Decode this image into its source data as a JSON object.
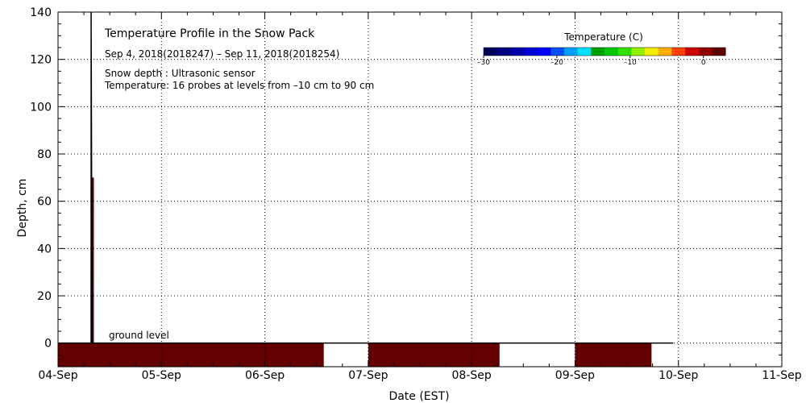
{
  "chart_data": {
    "type": "heatmap",
    "title": "Temperature Profile in the Snow Pack",
    "subtitle": "Sep  4, 2018(2018247) – Sep 11, 2018(2018254)",
    "notes": [
      "Snow depth : Ultrasonic sensor",
      "Temperature: 16 probes at levels from –10 cm to 90 cm"
    ],
    "xlabel": "Date (EST)",
    "ylabel": "Depth, cm",
    "x_ticks": [
      "04-Sep",
      "05-Sep",
      "06-Sep",
      "07-Sep",
      "08-Sep",
      "09-Sep",
      "10-Sep",
      "11-Sep"
    ],
    "x_range_days": [
      0,
      7
    ],
    "ylim": [
      -10,
      140
    ],
    "y_ticks": [
      0,
      20,
      40,
      60,
      80,
      100,
      120,
      140
    ],
    "grid": true,
    "ground_level_label": "ground level",
    "colorbar": {
      "title": "Temperature (C)",
      "ticks": [
        -30,
        -20,
        -10,
        0
      ],
      "range": [
        -30,
        3
      ],
      "colors": [
        "#00005a",
        "#000082",
        "#0000aa",
        "#0000d2",
        "#0000ff",
        "#0050ff",
        "#00a0ff",
        "#00e0ff",
        "#00a000",
        "#00c800",
        "#30e000",
        "#90f000",
        "#f0f000",
        "#ffb000",
        "#ff4000",
        "#d00000",
        "#900000",
        "#600000"
      ]
    },
    "temperature_blocks": [
      {
        "start_day": 0.0,
        "end_day": 2.57,
        "depth_top": 0,
        "depth_bottom": -10,
        "color": "#640000"
      },
      {
        "start_day": 3.0,
        "end_day": 4.27,
        "depth_top": 0,
        "depth_bottom": -10,
        "color": "#640000"
      },
      {
        "start_day": 5.0,
        "end_day": 5.74,
        "depth_top": 0,
        "depth_bottom": -10,
        "color": "#640000"
      }
    ],
    "snow_depth_series": [
      {
        "day": 0.0,
        "depth": 0
      },
      {
        "day": 0.32,
        "depth": 0
      },
      {
        "day": 0.32,
        "depth": 140
      },
      {
        "day": 0.33,
        "depth": 0
      },
      {
        "day": 5.95,
        "depth": 0
      }
    ],
    "spike": {
      "day": 0.335,
      "depth_top": 70,
      "color": "#640000"
    }
  }
}
